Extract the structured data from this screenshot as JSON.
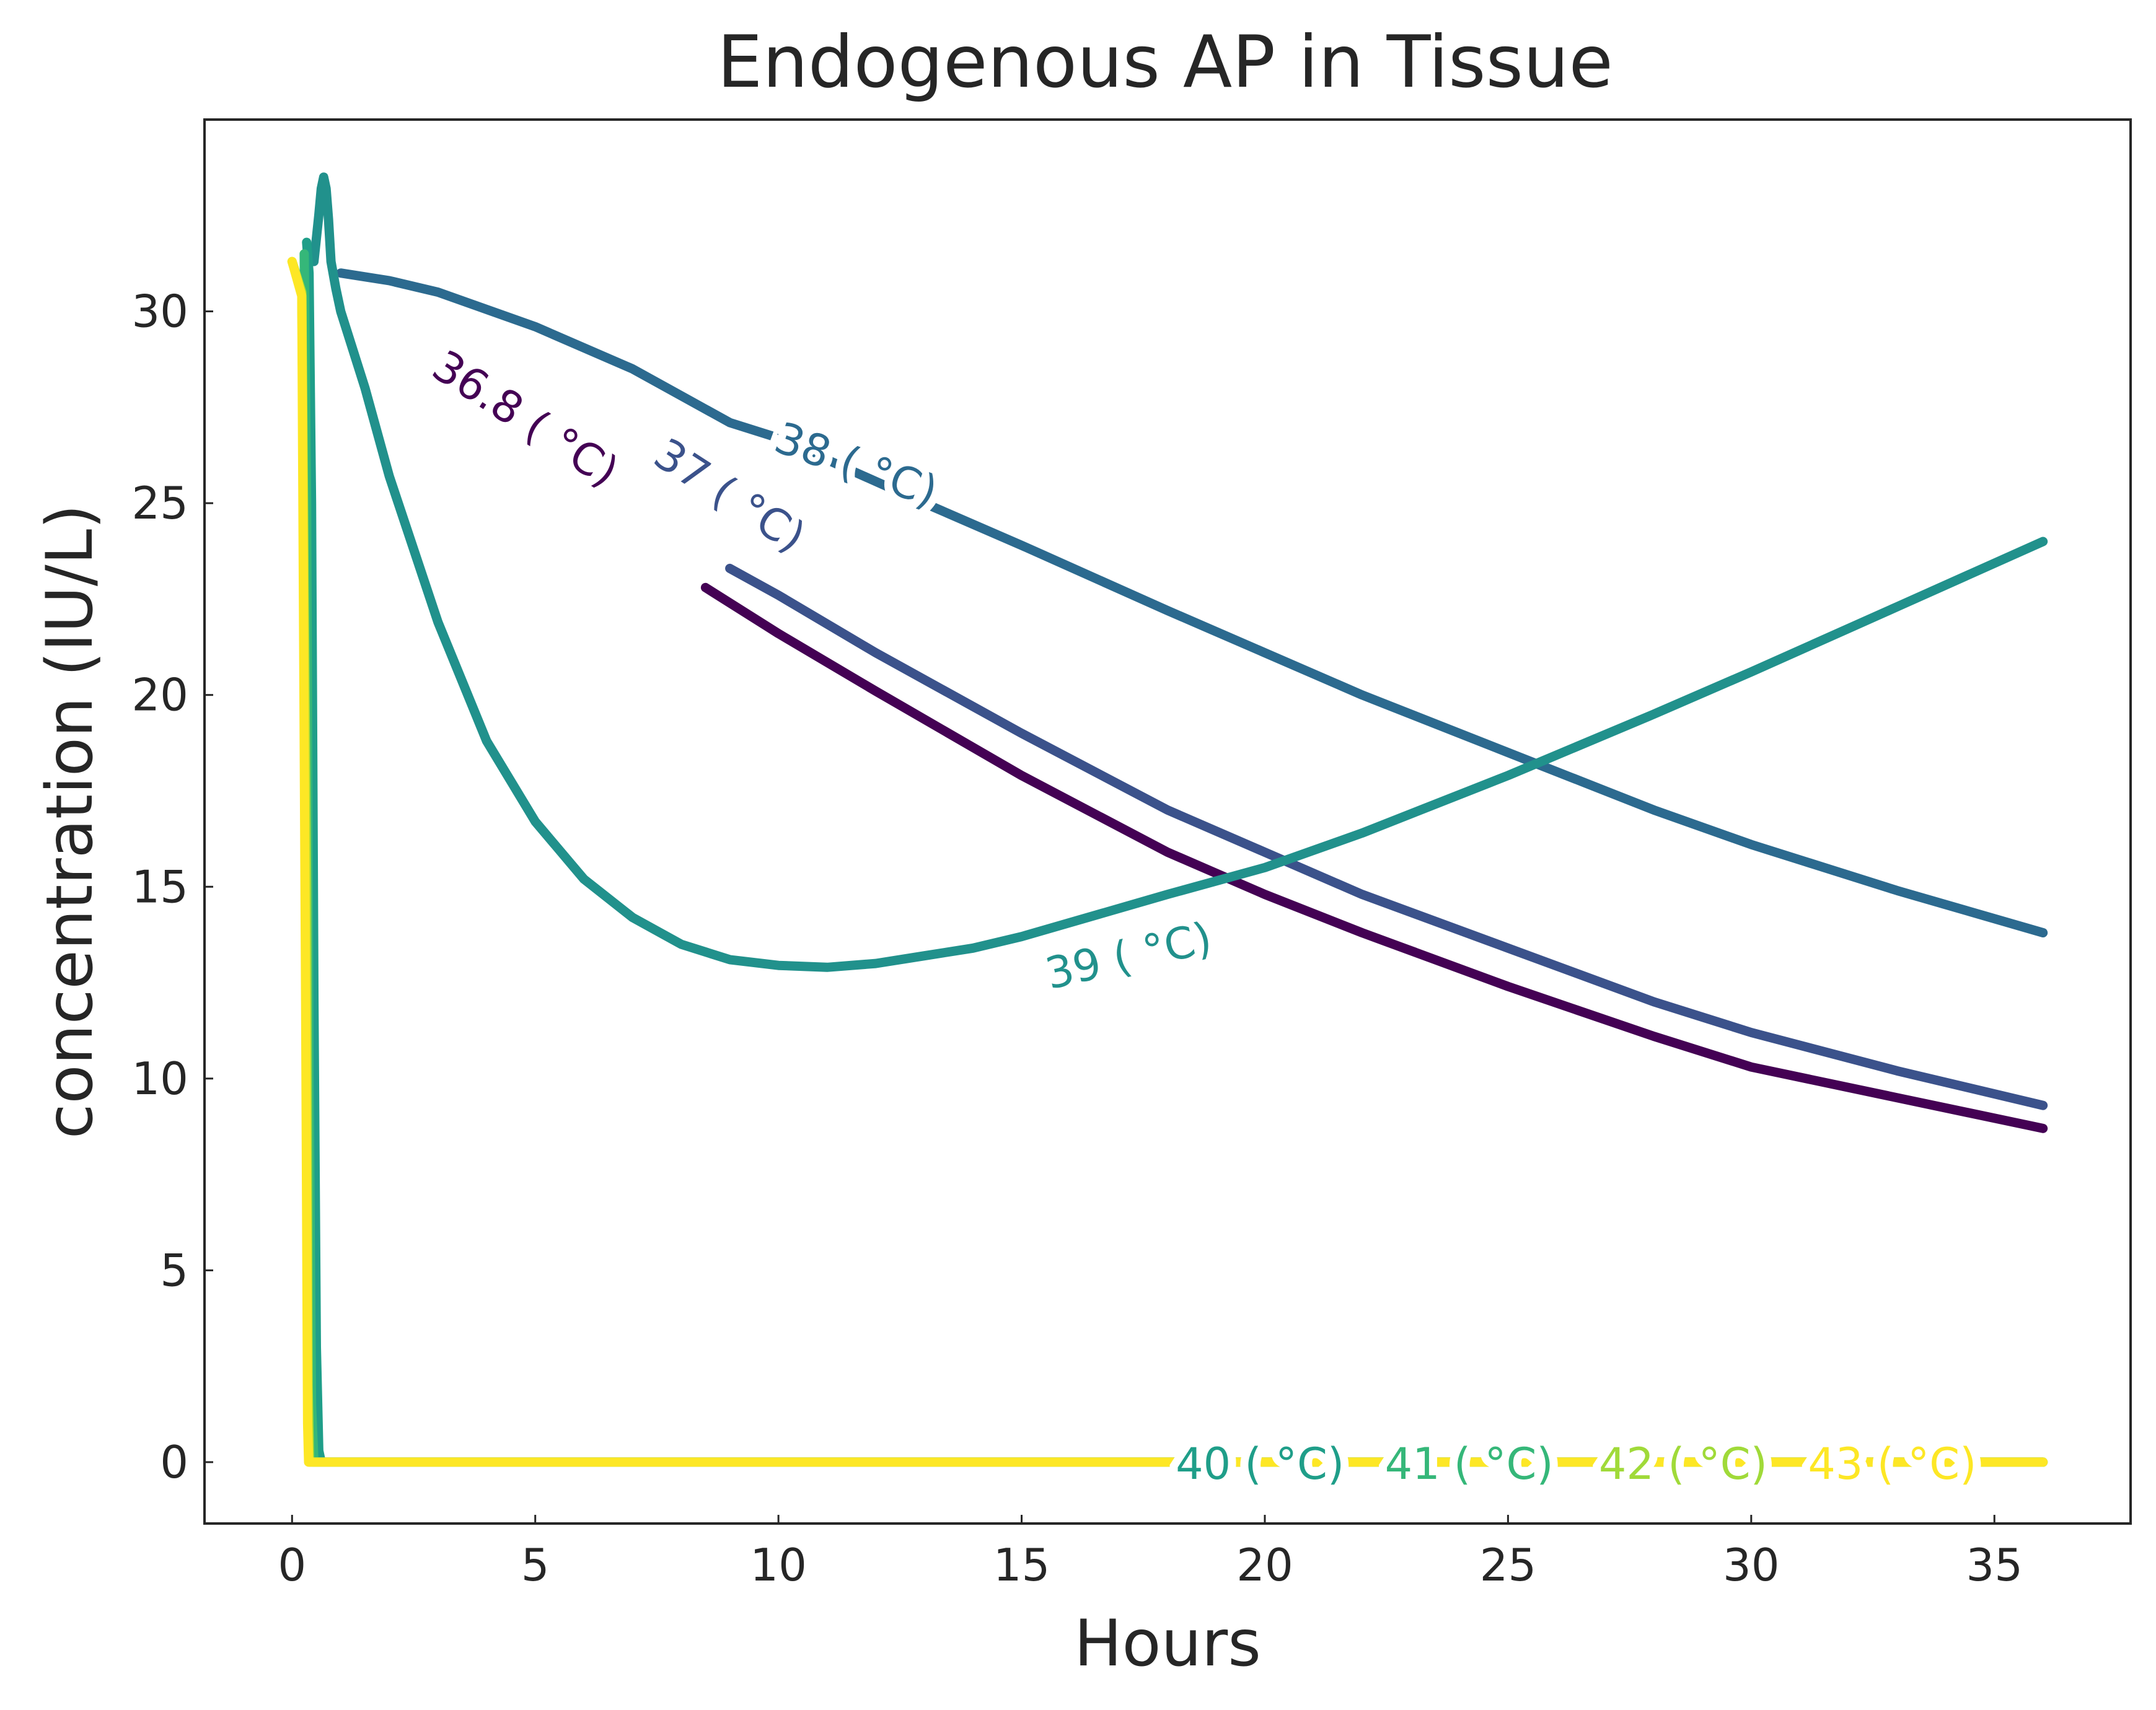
{
  "chart_data": {
    "type": "line",
    "title": "Endogenous AP in Tissue",
    "xlabel": "Hours",
    "ylabel": "concentration (IU/L)",
    "xlim": [
      -1.8,
      37.8
    ],
    "ylim": [
      -1.6,
      35.0
    ],
    "xticks": [
      0,
      5,
      10,
      15,
      20,
      25,
      30,
      35
    ],
    "yticks": [
      0,
      5,
      10,
      15,
      20,
      25,
      30
    ],
    "grid": false,
    "legend": "none (inline curve labels)",
    "series": [
      {
        "name": "36.8 (°C)",
        "label": "36.8 ( °C)",
        "color": "#440154",
        "x": [
          8.5,
          10,
          12,
          15,
          18,
          20,
          22,
          25,
          28,
          30,
          33,
          36
        ],
        "y": [
          22.8,
          21.6,
          20.1,
          17.9,
          15.9,
          14.8,
          13.8,
          12.4,
          11.1,
          10.3,
          9.5,
          8.7
        ]
      },
      {
        "name": "37 (°C)",
        "label": "37 ( °C)",
        "color": "#3b528b",
        "x": [
          9.0,
          10,
          12,
          15,
          18,
          20,
          22,
          25,
          28,
          30,
          33,
          36
        ],
        "y": [
          23.3,
          22.6,
          21.1,
          19.0,
          17.0,
          15.9,
          14.8,
          13.4,
          12.0,
          11.2,
          10.2,
          9.3
        ]
      },
      {
        "name": "38 (°C)",
        "label": "38 ( °C)",
        "color": "#2c6a8f",
        "x": [
          1,
          2,
          3,
          5,
          7,
          9,
          10,
          13,
          15,
          18,
          20,
          22,
          25,
          28,
          30,
          33,
          36
        ],
        "y": [
          31.0,
          30.8,
          30.5,
          29.6,
          28.5,
          27.1,
          26.7,
          25.0,
          23.9,
          22.2,
          21.1,
          20.0,
          18.5,
          17.0,
          16.1,
          14.9,
          13.8
        ]
      },
      {
        "name": "39 (°C)",
        "label": "39 ( °C)",
        "color": "#21918c",
        "x": [
          0.45,
          0.55,
          0.6,
          0.65,
          0.7,
          0.75,
          0.8,
          0.9,
          1,
          1.5,
          2,
          3,
          4,
          5,
          6,
          7,
          8,
          9,
          10,
          11,
          12,
          13,
          14,
          15,
          18,
          20,
          22,
          25,
          28,
          30,
          33,
          36
        ],
        "y": [
          31.3,
          32.5,
          33.2,
          33.5,
          33.2,
          32.4,
          31.3,
          30.6,
          30.0,
          28.0,
          25.7,
          21.9,
          18.8,
          16.7,
          15.2,
          14.2,
          13.5,
          13.1,
          12.95,
          12.9,
          13.0,
          13.2,
          13.4,
          13.7,
          14.8,
          15.5,
          16.4,
          17.9,
          19.5,
          20.6,
          22.3,
          24.0
        ]
      },
      {
        "name": "40 (°C)",
        "label": "40 ( °C)",
        "color": "#1f9e89",
        "x": [
          0.3,
          0.35,
          0.4,
          0.45,
          0.5,
          0.55,
          0.6,
          36
        ],
        "y": [
          31.8,
          31.0,
          25.0,
          12.0,
          3.0,
          0.3,
          0.0,
          0.0
        ]
      },
      {
        "name": "41 (°C)",
        "label": "41 ( °C)",
        "color": "#35b779",
        "x": [
          0.25,
          0.3,
          0.35,
          0.4,
          0.45,
          36
        ],
        "y": [
          31.5,
          25.0,
          10.0,
          1.5,
          0.0,
          0.0
        ]
      },
      {
        "name": "42 (°C)",
        "label": "42 ( °C)",
        "color": "#a0da39",
        "x": [
          0.0,
          0.2,
          0.3,
          0.33,
          0.36,
          36
        ],
        "y": [
          31.3,
          30.5,
          15.0,
          2.0,
          0.0,
          0.0
        ]
      },
      {
        "name": "43 (°C)",
        "label": "43 ( °C)",
        "color": "#fde725",
        "x": [
          0.0,
          0.2,
          0.28,
          0.32,
          0.34,
          36
        ],
        "y": [
          31.3,
          30.4,
          12.0,
          1.0,
          0.0,
          0.0
        ]
      }
    ]
  }
}
